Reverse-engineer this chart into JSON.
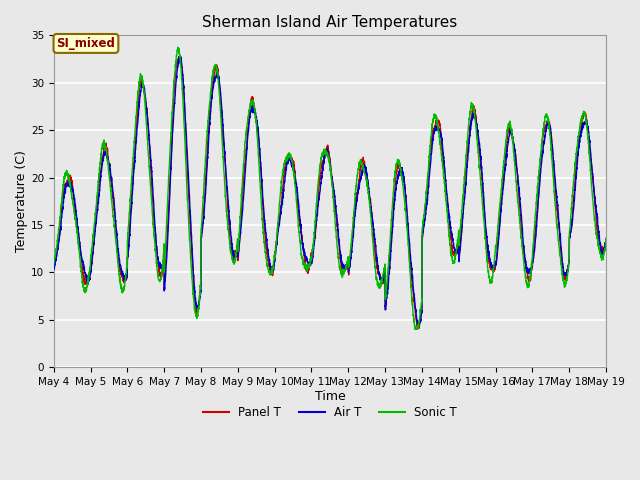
{
  "title": "Sherman Island Air Temperatures",
  "xlabel": "Time",
  "ylabel": "Temperature (C)",
  "ylim": [
    0,
    35
  ],
  "yticks": [
    0,
    5,
    10,
    15,
    20,
    25,
    30,
    35
  ],
  "x_tick_labels": [
    "May 4",
    "May 5",
    "May 6",
    "May 7",
    "May 8",
    "May 9",
    "May 10",
    "May 11",
    "May 12",
    "May 13",
    "May 14",
    "May 15",
    "May 16",
    "May 17",
    "May 18",
    "May 19"
  ],
  "legend_labels": [
    "Panel T",
    "Air T",
    "Sonic T"
  ],
  "line_colors": [
    "#cc0000",
    "#0000cc",
    "#00bb00"
  ],
  "annotation_text": "SI_mixed",
  "annotation_bg": "#ffffcc",
  "annotation_border": "#886600",
  "annotation_text_color": "#880000",
  "fig_bg_color": "#e8e8e8",
  "plot_bg_color": "#e8e8e8",
  "grid_color": "#ffffff",
  "title_fontsize": 11,
  "label_fontsize": 9,
  "tick_fontsize": 7.5
}
